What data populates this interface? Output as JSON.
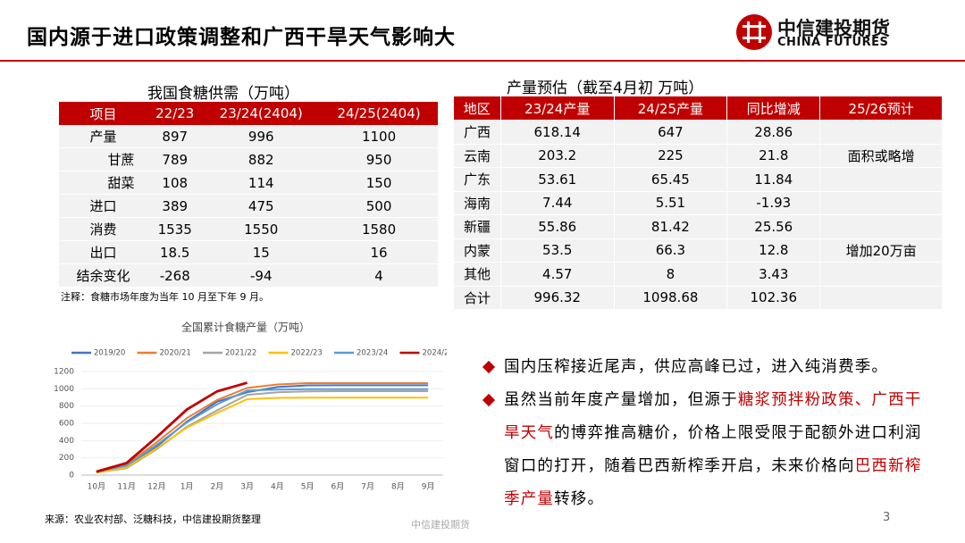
{
  "header": {
    "title": "国内源于进口政策调整和广西干旱天气影响大",
    "logo_cn": "中信建投期货",
    "logo_en": "CHINA FUTURES"
  },
  "supply_table": {
    "title": "我国食糖供需（万吨）",
    "columns": [
      "项目",
      "22/23",
      "23/24(2404)",
      "24/25(2404)"
    ],
    "rows": [
      [
        "产量",
        "897",
        "996",
        "1100"
      ],
      [
        "甘蔗",
        "789",
        "882",
        "950"
      ],
      [
        "甜菜",
        "108",
        "114",
        "150"
      ],
      [
        "进口",
        "389",
        "475",
        "500"
      ],
      [
        "消费",
        "1535",
        "1550",
        "1580"
      ],
      [
        "出口",
        "18.5",
        "15",
        "16"
      ],
      [
        "结余变化",
        "-268",
        "-94",
        "4"
      ]
    ],
    "note": "注释：食糖市场年度为当年 10 月至下年 9 月。"
  },
  "forecast_table": {
    "title": "产量预估（截至4月初 万吨）",
    "columns": [
      "地区",
      "23/24产量",
      "24/25产量",
      "同比增减",
      "25/26预计"
    ],
    "rows": [
      [
        "广西",
        "618.14",
        "647",
        "28.86",
        null
      ],
      [
        "云南",
        "203.2",
        "225",
        "21.8",
        "面积或略增"
      ],
      [
        "广东",
        "53.61",
        "65.45",
        "11.84",
        null
      ],
      [
        "海南",
        "7.44",
        "5.51",
        "-1.93",
        null
      ],
      [
        "新疆",
        "55.86",
        "81.42",
        "25.56",
        null
      ],
      [
        "内蒙",
        "53.5",
        "66.3",
        "12.8",
        "增加20万亩"
      ],
      [
        "其他",
        "4.57",
        "8",
        "3.43",
        null
      ],
      [
        "合计",
        "996.32",
        "1098.68",
        "102.36",
        null
      ]
    ]
  },
  "chart_data": {
    "type": "line",
    "title": "全国累计食糖产量（万吨）",
    "categories": [
      "10月",
      "11月",
      "12月",
      "1月",
      "2月",
      "3月",
      "4月",
      "5月",
      "6月",
      "7月",
      "8月",
      "9月"
    ],
    "ylim": [
      0,
      1200
    ],
    "yticks": [
      0,
      200,
      400,
      600,
      800,
      1000,
      1200
    ],
    "legend": "top",
    "series": [
      {
        "name": "2019/20",
        "color": "#4472c4",
        "values": [
          40,
          100,
          330,
          620,
          850,
          960,
          1020,
          1040,
          1041,
          1041,
          1041,
          1041
        ]
      },
      {
        "name": "2020/21",
        "color": "#ed7d31",
        "values": [
          40,
          120,
          380,
          660,
          870,
          1010,
          1050,
          1065,
          1066,
          1066,
          1066,
          1066
        ]
      },
      {
        "name": "2021/22",
        "color": "#a5a5a5",
        "values": [
          30,
          80,
          300,
          560,
          750,
          930,
          960,
          970,
          972,
          972,
          972,
          972
        ]
      },
      {
        "name": "2022/23",
        "color": "#ffc000",
        "values": [
          30,
          90,
          310,
          550,
          720,
          880,
          895,
          897,
          897,
          897,
          897,
          897
        ]
      },
      {
        "name": "2023/24",
        "color": "#5b9bd5",
        "values": [
          40,
          110,
          350,
          610,
          820,
          980,
          990,
          996,
          996,
          996,
          996,
          996
        ]
      },
      {
        "name": "2024/25",
        "color": "#c00000",
        "values": [
          40,
          140,
          440,
          760,
          970,
          1070,
          null,
          null,
          null,
          null,
          null,
          null
        ]
      }
    ]
  },
  "bullets": [
    [
      {
        "text": "国内压榨接近尾声，供应高峰已过，进入纯消费季。",
        "color": "#000000"
      }
    ],
    [
      {
        "text": "虽然当前年度产量增加，但源于",
        "color": "#000000"
      },
      {
        "text": "糖浆预拌粉政策、广西干旱天气",
        "color": "#c00000"
      },
      {
        "text": "的博弈推高糖价，价格上限受限于配额外进口利润窗口的打开，随着巴西新榨季开启，未来价格向",
        "color": "#000000"
      },
      {
        "text": "巴西新榨季产量",
        "color": "#c00000"
      },
      {
        "text": "转移。",
        "color": "#000000"
      }
    ]
  ],
  "footer": {
    "source": "来源：农业农村部、泛糖科技，中信建投期货整理",
    "center": "中信建投期货",
    "page": "3"
  }
}
